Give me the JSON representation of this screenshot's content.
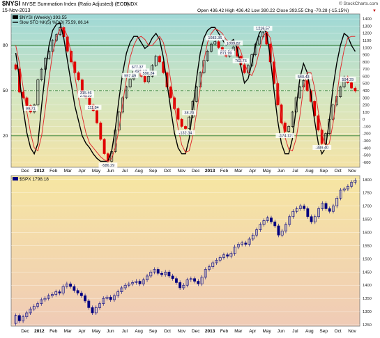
{
  "header": {
    "symbol": "$NYSI",
    "description": "NYSE Summation Index (Ratio Adjusted) (EOD)",
    "exchange": "INDX",
    "date": "15-Nov-2013",
    "ohlc": "Open 436.42  High 436.42  Low 380.22  Close 393.55  Chg -70.28 (-15.15%)",
    "chg_arrow": "▼",
    "watermark": "© StockCharts.com"
  },
  "colors": {
    "up": "#000000",
    "down": "#e00000",
    "osc_k": "#000000",
    "osc_d": "#e03030",
    "spx_up": "#000080",
    "spx_down": "#000080"
  },
  "x_axis": {
    "labels": [
      "Dec",
      "2012",
      "Feb",
      "Mar",
      "Apr",
      "May",
      "Jun",
      "Jul",
      "Aug",
      "Sep",
      "Oct",
      "Nov",
      "Dec",
      "2013",
      "Feb",
      "Mar",
      "Apr",
      "May",
      "Jun",
      "Jul",
      "Aug",
      "Sep",
      "Oct",
      "Nov"
    ]
  },
  "chart_data": [
    {
      "type": "candlestick",
      "title": "$NYSI NYSE Summation Index (Ratio Adjusted) (EOD) INDX",
      "legend": [
        {
          "label": "$NYSI (Weekly) 393.55"
        },
        {
          "label": "Slow STO %K(5) %D(3) 75.59, 86.14"
        }
      ],
      "frequency": "weekly",
      "ylim": [
        -650,
        1450
      ],
      "y_ticks": [
        1400,
        1300,
        1200,
        1100,
        1000,
        900,
        800,
        700,
        600,
        500,
        400,
        300,
        200,
        100,
        0,
        -100,
        -200,
        -300,
        -400,
        -500,
        -600
      ],
      "sto_levels": [
        80,
        50,
        20
      ],
      "annotations": [
        "762.76",
        "38.20",
        "278.20",
        "99.71",
        "-586.29",
        "668.62",
        "504.29",
        "677.37",
        "557.49",
        "889.54",
        "-132.34",
        "1083.36",
        "1009.82",
        "871.99",
        "621.12",
        "1216.57",
        "-174.12",
        "540.43",
        "-339.40",
        "315.46",
        "590.24",
        "111.84"
      ],
      "weeks": [
        {
          "o": 760,
          "c": 700
        },
        {
          "o": 700,
          "c": 380
        },
        {
          "o": 380,
          "c": 300
        },
        {
          "o": 300,
          "c": 190
        },
        {
          "o": 190,
          "c": 100
        },
        {
          "o": 100,
          "c": 200
        },
        {
          "o": 200,
          "c": 550
        },
        {
          "o": 550,
          "c": 700
        },
        {
          "o": 700,
          "c": 850
        },
        {
          "o": 850,
          "c": 950
        },
        {
          "o": 950,
          "c": 1100
        },
        {
          "o": 1100,
          "c": 1180
        },
        {
          "o": 1180,
          "c": 1280
        },
        {
          "o": 1280,
          "c": 1150
        },
        {
          "o": 1150,
          "c": 950
        },
        {
          "o": 950,
          "c": 800
        },
        {
          "o": 800,
          "c": 650
        },
        {
          "o": 650,
          "c": 550
        },
        {
          "o": 550,
          "c": 350
        },
        {
          "o": 350,
          "c": 300
        },
        {
          "o": 300,
          "c": 200
        },
        {
          "o": 200,
          "c": 120
        },
        {
          "o": 120,
          "c": -50
        },
        {
          "o": -50,
          "c": -280
        },
        {
          "o": -280,
          "c": -480
        },
        {
          "o": -480,
          "c": -586
        },
        {
          "o": -586,
          "c": -450
        },
        {
          "o": -450,
          "c": -150
        },
        {
          "o": -150,
          "c": 100
        },
        {
          "o": 100,
          "c": 300
        },
        {
          "o": 300,
          "c": 450
        },
        {
          "o": 450,
          "c": 560
        },
        {
          "o": 560,
          "c": 670
        },
        {
          "o": 670,
          "c": 680
        },
        {
          "o": 680,
          "c": 600
        },
        {
          "o": 600,
          "c": 520
        },
        {
          "o": 520,
          "c": 600
        },
        {
          "o": 600,
          "c": 750
        },
        {
          "o": 750,
          "c": 880
        },
        {
          "o": 880,
          "c": 800
        },
        {
          "o": 800,
          "c": 650
        },
        {
          "o": 650,
          "c": 450
        },
        {
          "o": 450,
          "c": 300
        },
        {
          "o": 300,
          "c": 150
        },
        {
          "o": 150,
          "c": 0
        },
        {
          "o": 0,
          "c": -100
        },
        {
          "o": -100,
          "c": -130
        },
        {
          "o": -130,
          "c": 30
        },
        {
          "o": 30,
          "c": 250
        },
        {
          "o": 250,
          "c": 450
        },
        {
          "o": 450,
          "c": 650
        },
        {
          "o": 650,
          "c": 820
        },
        {
          "o": 820,
          "c": 950
        },
        {
          "o": 950,
          "c": 1050
        },
        {
          "o": 1050,
          "c": 1083
        },
        {
          "o": 1083,
          "c": 1000
        },
        {
          "o": 1000,
          "c": 950
        },
        {
          "o": 950,
          "c": 880
        },
        {
          "o": 880,
          "c": 960
        },
        {
          "o": 960,
          "c": 1010
        },
        {
          "o": 1010,
          "c": 880
        },
        {
          "o": 880,
          "c": 760
        },
        {
          "o": 760,
          "c": 650
        },
        {
          "o": 650,
          "c": 750
        },
        {
          "o": 750,
          "c": 900
        },
        {
          "o": 900,
          "c": 1050
        },
        {
          "o": 1050,
          "c": 1150
        },
        {
          "o": 1150,
          "c": 1216
        },
        {
          "o": 1216,
          "c": 1050
        },
        {
          "o": 1050,
          "c": 800
        },
        {
          "o": 800,
          "c": 500
        },
        {
          "o": 500,
          "c": 200
        },
        {
          "o": 200,
          "c": -50
        },
        {
          "o": -50,
          "c": -170
        },
        {
          "o": -170,
          "c": -100
        },
        {
          "o": -100,
          "c": 100
        },
        {
          "o": 100,
          "c": 300
        },
        {
          "o": 300,
          "c": 450
        },
        {
          "o": 450,
          "c": 540
        },
        {
          "o": 540,
          "c": 400
        },
        {
          "o": 400,
          "c": 250
        },
        {
          "o": 250,
          "c": 50
        },
        {
          "o": 50,
          "c": -150
        },
        {
          "o": -150,
          "c": -339
        },
        {
          "o": -339,
          "c": -200
        },
        {
          "o": -200,
          "c": 0
        },
        {
          "o": 0,
          "c": 200
        },
        {
          "o": 200,
          "c": 315
        },
        {
          "o": 315,
          "c": 450
        },
        {
          "o": 450,
          "c": 590
        },
        {
          "o": 590,
          "c": 510
        },
        {
          "o": 510,
          "c": 436
        },
        {
          "o": 436,
          "c": 393
        }
      ],
      "slow_sto_k": [
        75,
        58,
        38,
        22,
        12,
        8,
        15,
        40,
        62,
        80,
        90,
        94,
        95,
        85,
        70,
        55,
        40,
        30,
        20,
        15,
        12,
        8,
        5,
        3,
        3,
        3,
        10,
        25,
        45,
        62,
        75,
        82,
        86,
        86,
        82,
        78,
        80,
        85,
        88,
        84,
        72,
        55,
        38,
        22,
        12,
        8,
        8,
        18,
        38,
        58,
        75,
        85,
        90,
        92,
        92,
        88,
        84,
        80,
        82,
        84,
        78,
        66,
        55,
        58,
        68,
        80,
        88,
        92,
        88,
        72,
        50,
        30,
        15,
        8,
        8,
        18,
        38,
        58,
        68,
        62,
        48,
        30,
        15,
        8,
        12,
        30,
        52,
        68,
        80,
        88,
        86,
        80,
        76
      ],
      "slow_sto_d": [
        80,
        68,
        52,
        36,
        22,
        12,
        10,
        20,
        38,
        58,
        75,
        85,
        91,
        92,
        86,
        75,
        60,
        45,
        33,
        22,
        15,
        12,
        9,
        6,
        4,
        3,
        5,
        12,
        25,
        42,
        58,
        72,
        80,
        85,
        86,
        84,
        80,
        80,
        83,
        86,
        82,
        72,
        57,
        40,
        25,
        14,
        9,
        10,
        20,
        35,
        52,
        70,
        82,
        88,
        91,
        90,
        88,
        84,
        82,
        82,
        81,
        76,
        68,
        62,
        60,
        66,
        76,
        86,
        89,
        85,
        72,
        53,
        34,
        19,
        11,
        10,
        18,
        33,
        52,
        62,
        62,
        52,
        36,
        22,
        13,
        15,
        28,
        46,
        64,
        77,
        85,
        86,
        86
      ]
    },
    {
      "type": "candlestick",
      "title": "$SPX",
      "legend": [
        {
          "label": "$SPX 1798.18"
        }
      ],
      "frequency": "weekly",
      "ylim": [
        1250,
        1810
      ],
      "y_ticks": [
        1800,
        1750,
        1700,
        1650,
        1600,
        1550,
        1500,
        1450,
        1400,
        1350,
        1300,
        1250
      ],
      "weeks": [
        {
          "o": 1255,
          "c": 1285
        },
        {
          "o": 1285,
          "c": 1265
        },
        {
          "o": 1265,
          "c": 1280
        },
        {
          "o": 1280,
          "c": 1295
        },
        {
          "o": 1295,
          "c": 1310
        },
        {
          "o": 1310,
          "c": 1320
        },
        {
          "o": 1320,
          "c": 1330
        },
        {
          "o": 1330,
          "c": 1345
        },
        {
          "o": 1345,
          "c": 1350
        },
        {
          "o": 1350,
          "c": 1360
        },
        {
          "o": 1360,
          "c": 1365
        },
        {
          "o": 1365,
          "c": 1375
        },
        {
          "o": 1375,
          "c": 1370
        },
        {
          "o": 1370,
          "c": 1395
        },
        {
          "o": 1395,
          "c": 1405
        },
        {
          "o": 1405,
          "c": 1395
        },
        {
          "o": 1395,
          "c": 1380
        },
        {
          "o": 1380,
          "c": 1370
        },
        {
          "o": 1370,
          "c": 1360
        },
        {
          "o": 1360,
          "c": 1340
        },
        {
          "o": 1340,
          "c": 1315
        },
        {
          "o": 1315,
          "c": 1295
        },
        {
          "o": 1295,
          "c": 1315
        },
        {
          "o": 1315,
          "c": 1330
        },
        {
          "o": 1330,
          "c": 1350
        },
        {
          "o": 1350,
          "c": 1355
        },
        {
          "o": 1355,
          "c": 1345
        },
        {
          "o": 1345,
          "c": 1360
        },
        {
          "o": 1360,
          "c": 1375
        },
        {
          "o": 1375,
          "c": 1390
        },
        {
          "o": 1390,
          "c": 1400
        },
        {
          "o": 1400,
          "c": 1405
        },
        {
          "o": 1405,
          "c": 1410
        },
        {
          "o": 1410,
          "c": 1415
        },
        {
          "o": 1415,
          "c": 1405
        },
        {
          "o": 1405,
          "c": 1420
        },
        {
          "o": 1420,
          "c": 1435
        },
        {
          "o": 1435,
          "c": 1450
        },
        {
          "o": 1450,
          "c": 1460
        },
        {
          "o": 1460,
          "c": 1445
        },
        {
          "o": 1445,
          "c": 1440
        },
        {
          "o": 1440,
          "c": 1450
        },
        {
          "o": 1450,
          "c": 1435
        },
        {
          "o": 1435,
          "c": 1425
        },
        {
          "o": 1425,
          "c": 1410
        },
        {
          "o": 1410,
          "c": 1390
        },
        {
          "o": 1390,
          "c": 1400
        },
        {
          "o": 1400,
          "c": 1420
        },
        {
          "o": 1420,
          "c": 1425
        },
        {
          "o": 1425,
          "c": 1415
        },
        {
          "o": 1415,
          "c": 1405
        },
        {
          "o": 1405,
          "c": 1430
        },
        {
          "o": 1430,
          "c": 1460
        },
        {
          "o": 1460,
          "c": 1470
        },
        {
          "o": 1470,
          "c": 1485
        },
        {
          "o": 1485,
          "c": 1495
        },
        {
          "o": 1495,
          "c": 1505
        },
        {
          "o": 1505,
          "c": 1515
        },
        {
          "o": 1515,
          "c": 1510
        },
        {
          "o": 1510,
          "c": 1520
        },
        {
          "o": 1520,
          "c": 1545
        },
        {
          "o": 1545,
          "c": 1555
        },
        {
          "o": 1555,
          "c": 1560
        },
        {
          "o": 1560,
          "c": 1555
        },
        {
          "o": 1555,
          "c": 1575
        },
        {
          "o": 1575,
          "c": 1590
        },
        {
          "o": 1590,
          "c": 1610
        },
        {
          "o": 1610,
          "c": 1630
        },
        {
          "o": 1630,
          "c": 1645
        },
        {
          "o": 1645,
          "c": 1655
        },
        {
          "o": 1655,
          "c": 1640
        },
        {
          "o": 1640,
          "c": 1625
        },
        {
          "o": 1625,
          "c": 1590
        },
        {
          "o": 1590,
          "c": 1605
        },
        {
          "o": 1605,
          "c": 1630
        },
        {
          "o": 1630,
          "c": 1660
        },
        {
          "o": 1660,
          "c": 1680
        },
        {
          "o": 1680,
          "c": 1690
        },
        {
          "o": 1690,
          "c": 1700
        },
        {
          "o": 1700,
          "c": 1690
        },
        {
          "o": 1690,
          "c": 1660
        },
        {
          "o": 1660,
          "c": 1640
        },
        {
          "o": 1640,
          "c": 1660
        },
        {
          "o": 1660,
          "c": 1690
        },
        {
          "o": 1690,
          "c": 1710
        },
        {
          "o": 1710,
          "c": 1690
        },
        {
          "o": 1690,
          "c": 1680
        },
        {
          "o": 1680,
          "c": 1700
        },
        {
          "o": 1700,
          "c": 1730
        },
        {
          "o": 1730,
          "c": 1760
        },
        {
          "o": 1760,
          "c": 1765
        },
        {
          "o": 1765,
          "c": 1775
        },
        {
          "o": 1775,
          "c": 1790
        },
        {
          "o": 1790,
          "c": 1798
        }
      ]
    }
  ]
}
